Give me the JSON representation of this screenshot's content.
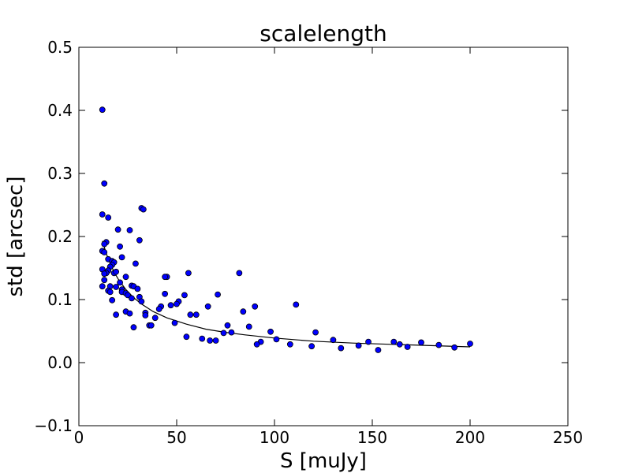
{
  "chart_data": {
    "type": "scatter",
    "title": "scalelength",
    "xlabel": "S [muJy]",
    "ylabel": "std [arcsec]",
    "xlim": [
      0,
      250
    ],
    "ylim": [
      -0.1,
      0.5
    ],
    "x_ticks": [
      "0",
      "50",
      "100",
      "150",
      "200",
      "250"
    ],
    "y_ticks": [
      "−0.1",
      "0.0",
      "0.1",
      "0.2",
      "0.3",
      "0.4",
      "0.5"
    ],
    "grid": false,
    "colors": {
      "points": "#0000ff",
      "point_edge": "#000000",
      "fit": "#000000"
    },
    "series": [
      {
        "type": "scatter",
        "points": [
          [
            12.0,
            0.401
          ],
          [
            13.0,
            0.284
          ],
          [
            12.0,
            0.235
          ],
          [
            15.0,
            0.23
          ],
          [
            32.0,
            0.245
          ],
          [
            33.0,
            0.243
          ],
          [
            20.0,
            0.211
          ],
          [
            26.0,
            0.21
          ],
          [
            31.0,
            0.194
          ],
          [
            14.0,
            0.191
          ],
          [
            13.0,
            0.188
          ],
          [
            21.0,
            0.184
          ],
          [
            12.0,
            0.177
          ],
          [
            13.0,
            0.175
          ],
          [
            22.0,
            0.167
          ],
          [
            15.0,
            0.164
          ],
          [
            17.0,
            0.161
          ],
          [
            18.0,
            0.159
          ],
          [
            29.0,
            0.157
          ],
          [
            17.0,
            0.155
          ],
          [
            16.0,
            0.152
          ],
          [
            12.0,
            0.148
          ],
          [
            15.0,
            0.146
          ],
          [
            14.0,
            0.142
          ],
          [
            18.0,
            0.142
          ],
          [
            13.0,
            0.141
          ],
          [
            19.0,
            0.144
          ],
          [
            24.0,
            0.136
          ],
          [
            45.0,
            0.136
          ],
          [
            44.0,
            0.136
          ],
          [
            56.0,
            0.142
          ],
          [
            82.0,
            0.142
          ],
          [
            13.0,
            0.131
          ],
          [
            21.0,
            0.127
          ],
          [
            16.0,
            0.121
          ],
          [
            12.0,
            0.121
          ],
          [
            19.0,
            0.12
          ],
          [
            27.0,
            0.122
          ],
          [
            28.0,
            0.121
          ],
          [
            30.0,
            0.117
          ],
          [
            22.0,
            0.116
          ],
          [
            15.0,
            0.114
          ],
          [
            22.0,
            0.112
          ],
          [
            16.0,
            0.112
          ],
          [
            24.0,
            0.11
          ],
          [
            25.0,
            0.107
          ],
          [
            44.0,
            0.109
          ],
          [
            54.0,
            0.107
          ],
          [
            71.0,
            0.108
          ],
          [
            31.0,
            0.104
          ],
          [
            27.0,
            0.102
          ],
          [
            32.0,
            0.097
          ],
          [
            17.0,
            0.099
          ],
          [
            51.0,
            0.097
          ],
          [
            50.0,
            0.093
          ],
          [
            47.0,
            0.091
          ],
          [
            42.0,
            0.089
          ],
          [
            66.0,
            0.089
          ],
          [
            90.0,
            0.089
          ],
          [
            111.0,
            0.092
          ],
          [
            41.0,
            0.085
          ],
          [
            24.0,
            0.081
          ],
          [
            26.0,
            0.078
          ],
          [
            34.0,
            0.079
          ],
          [
            19.0,
            0.076
          ],
          [
            34.0,
            0.075
          ],
          [
            57.0,
            0.076
          ],
          [
            60.0,
            0.076
          ],
          [
            84.0,
            0.081
          ],
          [
            39.0,
            0.071
          ],
          [
            49.0,
            0.063
          ],
          [
            36.0,
            0.059
          ],
          [
            37.0,
            0.059
          ],
          [
            76.0,
            0.059
          ],
          [
            87.0,
            0.057
          ],
          [
            28.0,
            0.056
          ],
          [
            78.0,
            0.048
          ],
          [
            74.0,
            0.047
          ],
          [
            98.0,
            0.049
          ],
          [
            121.0,
            0.048
          ],
          [
            55.0,
            0.041
          ],
          [
            63.0,
            0.038
          ],
          [
            67.0,
            0.035
          ],
          [
            70.0,
            0.035
          ],
          [
            101.0,
            0.037
          ],
          [
            130.0,
            0.036
          ],
          [
            93.0,
            0.033
          ],
          [
            91.0,
            0.029
          ],
          [
            108.0,
            0.029
          ],
          [
            119.0,
            0.026
          ],
          [
            134.0,
            0.023
          ],
          [
            143.0,
            0.027
          ],
          [
            148.0,
            0.033
          ],
          [
            161.0,
            0.033
          ],
          [
            164.0,
            0.029
          ],
          [
            168.0,
            0.025
          ],
          [
            175.0,
            0.032
          ],
          [
            184.0,
            0.028
          ],
          [
            192.0,
            0.024
          ],
          [
            200.0,
            0.03
          ],
          [
            153.0,
            0.02
          ]
        ]
      },
      {
        "type": "line",
        "points": [
          [
            12.0,
            0.193
          ],
          [
            14.0,
            0.173
          ],
          [
            16.0,
            0.157
          ],
          [
            18.0,
            0.144
          ],
          [
            20.0,
            0.133
          ],
          [
            24.0,
            0.116
          ],
          [
            28.0,
            0.103
          ],
          [
            32.0,
            0.093
          ],
          [
            38.0,
            0.081
          ],
          [
            45.0,
            0.071
          ],
          [
            55.0,
            0.061
          ],
          [
            65.0,
            0.053
          ],
          [
            75.0,
            0.048
          ],
          [
            85.0,
            0.044
          ],
          [
            100.0,
            0.039
          ],
          [
            120.0,
            0.034
          ],
          [
            140.0,
            0.031
          ],
          [
            160.0,
            0.029
          ],
          [
            180.0,
            0.027
          ],
          [
            200.0,
            0.025
          ]
        ]
      }
    ]
  }
}
